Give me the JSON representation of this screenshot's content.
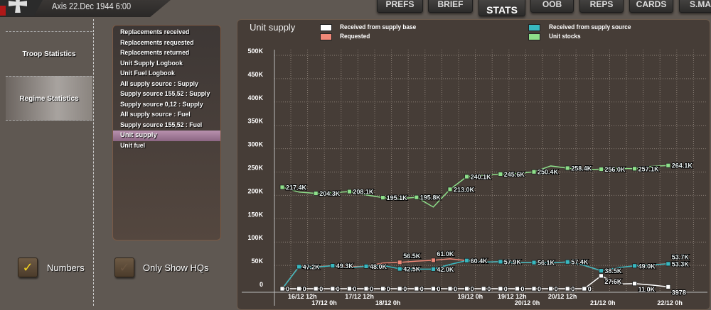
{
  "header": {
    "date": "Axis 22.Dec 1944 6:00"
  },
  "tabs": [
    "PREFS",
    "BRIEF",
    "STATS",
    "OOB",
    "REPS",
    "CARDS",
    "S.MA"
  ],
  "active_tab": "STATS",
  "sidebar": [
    "Troop Statistics",
    "Regime Statistics"
  ],
  "stat_list": [
    "Replacements received",
    "Replacements requested",
    "Replacements returned",
    "Unit Supply Logbook",
    "Unit Fuel Logbook",
    "All supply source : Supply",
    "Supply source 155,52 : Supply",
    "Supply source 0,12 : Supply",
    "All supply source : Fuel",
    "Supply source 155,52 : Fuel",
    "Unit supply",
    "Unit fuel"
  ],
  "selected_stat": "Unit supply",
  "checkboxes": {
    "numbers": {
      "label": "Numbers",
      "checked": true
    },
    "hqs": {
      "label": "Only Show HQs",
      "checked": false
    }
  },
  "chart_data": {
    "type": "line",
    "title": "Unit supply",
    "ylim": [
      0,
      500000
    ],
    "yticks": [
      "0",
      "50K",
      "100K",
      "150K",
      "200K",
      "250K",
      "300K",
      "350K",
      "400K",
      "450K",
      "500K"
    ],
    "xtick_labels": [
      {
        "t": 1.2,
        "label": "16/12 12h"
      },
      {
        "t": 2.5,
        "label": "17/12 0h"
      },
      {
        "t": 4.6,
        "label": "17/12 12h"
      },
      {
        "t": 6.3,
        "label": "18/12 0h"
      },
      {
        "t": 11.2,
        "label": "19/12 0h"
      },
      {
        "t": 13.7,
        "label": "19/12 12h"
      },
      {
        "t": 14.6,
        "label": "20/12 0h"
      },
      {
        "t": 16.7,
        "label": "20/12 12h"
      },
      {
        "t": 19.1,
        "label": "21/12 0h"
      },
      {
        "t": 23.1,
        "label": "22/12 0h"
      }
    ],
    "series": [
      {
        "name": "Unit stocks",
        "color": "#8ee08a",
        "values": [
          217.4,
          207,
          204.3,
          206,
          208.1,
          201,
          195.1,
          193,
          195.8,
          175,
          213.0,
          240.1,
          243,
          245.6,
          247,
          250.4,
          263,
          258.4,
          255,
          256.0,
          258,
          257.1,
          262,
          264.1
        ],
        "labels": {
          "0": "217.4K",
          "2": "204.3K",
          "4": "208.1K",
          "6": "195.1K",
          "8": "195.8K",
          "10": "213.0K",
          "11": "240.1K",
          "13": "245.6K",
          "15": "250.4K",
          "17": "258.4K",
          "19": "256.0K",
          "21": "257.1K",
          "23": "264.1K"
        }
      },
      {
        "name": "Requested",
        "color": "#f08878",
        "values": [
          0,
          48,
          47,
          49.3,
          47,
          48,
          55,
          56.5,
          59,
          61.0,
          64,
          60.4,
          57,
          57.9,
          56,
          56.1,
          55,
          57.4,
          50,
          38.5,
          45,
          49.0,
          51,
          53.7
        ],
        "labels": {
          "7": "56.5K",
          "9": "61.0K",
          "23": "53.7K"
        }
      },
      {
        "name": "Received from supply source",
        "color": "#38b8c0",
        "values": [
          0,
          47.2,
          46,
          49.3,
          45,
          48.0,
          50,
          42.5,
          42,
          42.0,
          52,
          60.4,
          57,
          57.9,
          56,
          56.1,
          55,
          57.4,
          50,
          38.5,
          45,
          49.0,
          51,
          53.3
        ],
        "labels": {
          "1": "47.2K",
          "3": "49.3K",
          "5": "48.0K",
          "7": "42.5K",
          "9": "42.0K",
          "11": "60.4K",
          "13": "57.9K",
          "15": "56.1K",
          "17": "57.4K",
          "19": "38.5K",
          "21": "49.0K",
          "23": "53.3K"
        }
      },
      {
        "name": "Received from supply base",
        "color": "#ffffff",
        "values": [
          0,
          0,
          0,
          0,
          0,
          0,
          0,
          0,
          0,
          0,
          0,
          0,
          0,
          0,
          0,
          0,
          0,
          0,
          0,
          27.6,
          10,
          11.0,
          8,
          3.978
        ],
        "labels": {
          "0": "0",
          "1": "0",
          "2": "0",
          "3": "0",
          "4": "0",
          "5": "0",
          "6": "0",
          "7": "0",
          "8": "0",
          "9": "0",
          "10": "0",
          "11": "0",
          "12": "0",
          "13": "0",
          "14": "0",
          "15": "0",
          "16": "0",
          "17": "0",
          "18": "0",
          "19": "27.6K",
          "21": "11.0K",
          "23": "3978"
        }
      }
    ],
    "units": "thousands"
  }
}
